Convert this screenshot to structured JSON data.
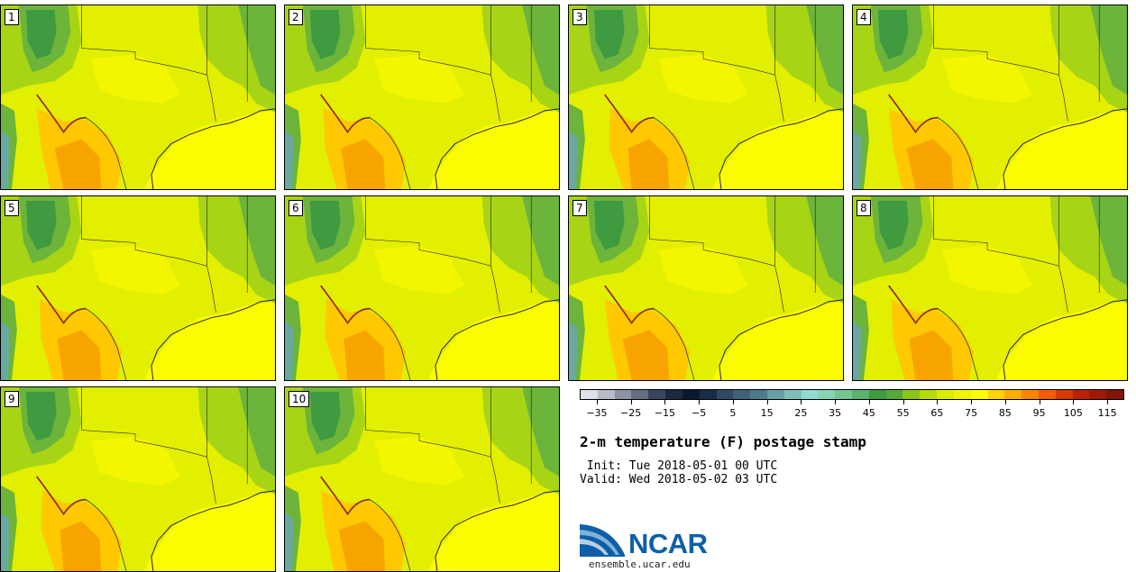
{
  "figure": {
    "title": "2-m temperature (F) postage stamp",
    "init_label": " Init:",
    "init_value": "Tue 2018-05-01 00 UTC",
    "valid_label": "Valid:",
    "valid_value": "Wed 2018-05-02 03 UTC"
  },
  "members": [
    "1",
    "2",
    "3",
    "4",
    "5",
    "6",
    "7",
    "8",
    "9",
    "10"
  ],
  "colorbar": {
    "min": -35,
    "max": 120,
    "step": 5,
    "tick_labels": [
      "−35",
      "−25",
      "−15",
      "−5",
      "5",
      "15",
      "25",
      "35",
      "45",
      "55",
      "65",
      "75",
      "85",
      "95",
      "105",
      "115"
    ],
    "colors": [
      "#dfe1ea",
      "#b8bcc9",
      "#8c93a4",
      "#646d82",
      "#3a4560",
      "#1c2840",
      "#0c1830",
      "#1a2d48",
      "#2e4a64",
      "#3f627a",
      "#4f7a8c",
      "#6a9ea6",
      "#7fbfba",
      "#8fdbd0",
      "#86d4b0",
      "#74c690",
      "#5cb070",
      "#3f9a40",
      "#56a83a",
      "#8cc41a",
      "#b4dc08",
      "#d8ee00",
      "#f0f400",
      "#ffff00",
      "#ffd400",
      "#ffae00",
      "#ff8400",
      "#f45c00",
      "#d83800",
      "#bc2208",
      "#a01808",
      "#801408"
    ]
  },
  "logo": {
    "name": "NCAR",
    "url": "ensemble.ucar.edu",
    "colors": {
      "blue": "#0e5fa8",
      "light_blue": "#7fb3d8"
    }
  },
  "map_colors": {
    "background": "#e2ef00",
    "green_dark": "#3f9a40",
    "green_mid": "#6cb43a",
    "green_light": "#a8d416",
    "yellow": "#f4f600",
    "gulf": "#fcfc00",
    "orange": "#ffc800",
    "orange_deep": "#f7a400",
    "red_line": "#e05a10",
    "teal": "#6aa8a0",
    "border": "#222222"
  }
}
